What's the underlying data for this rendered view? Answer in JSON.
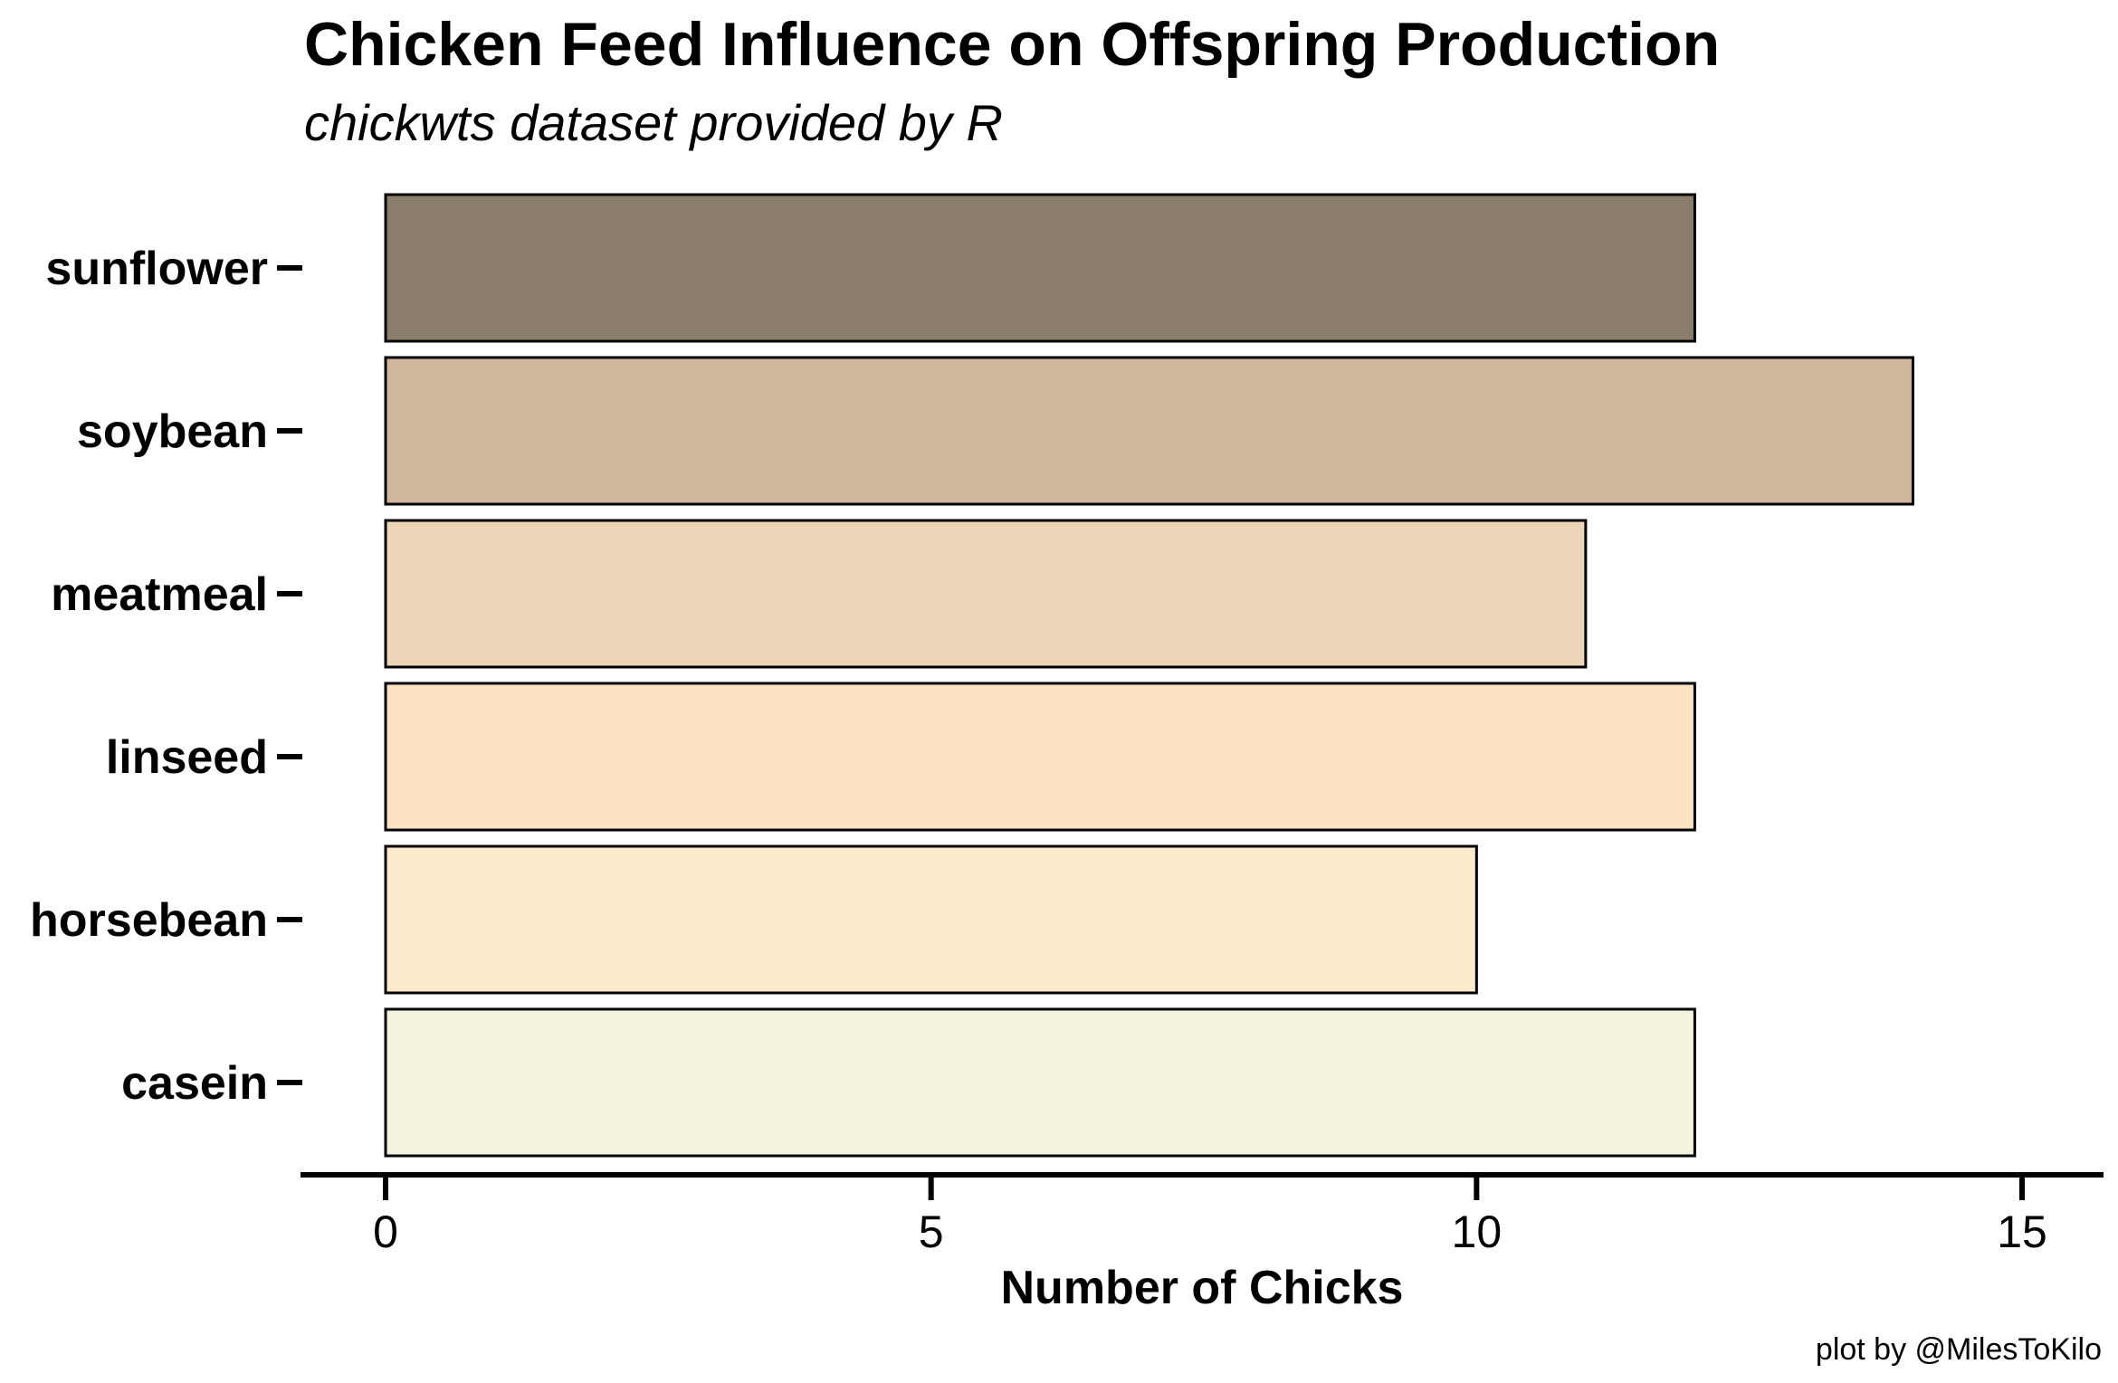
{
  "chart_data": {
    "type": "bar",
    "orientation": "horizontal",
    "title": "Chicken Feed Influence on Offspring Production",
    "subtitle": "chickwts dataset provided by R",
    "caption": "plot by @MilesToKilo",
    "xlabel": "Number of Chicks",
    "ylabel": "",
    "categories": [
      "casein",
      "horsebean",
      "linseed",
      "meatmeal",
      "soybean",
      "sunflower"
    ],
    "values": [
      12,
      10,
      12,
      11,
      14,
      12
    ],
    "colors": [
      "#F4F3DC",
      "#FDEBCD",
      "#FDE3C2",
      "#EDD5B7",
      "#CFB79E",
      "#8A7D6B"
    ],
    "xlim": [
      0,
      15
    ],
    "xticks": [
      "0",
      "5",
      "10",
      "15"
    ],
    "grid": false,
    "legend": "none"
  }
}
